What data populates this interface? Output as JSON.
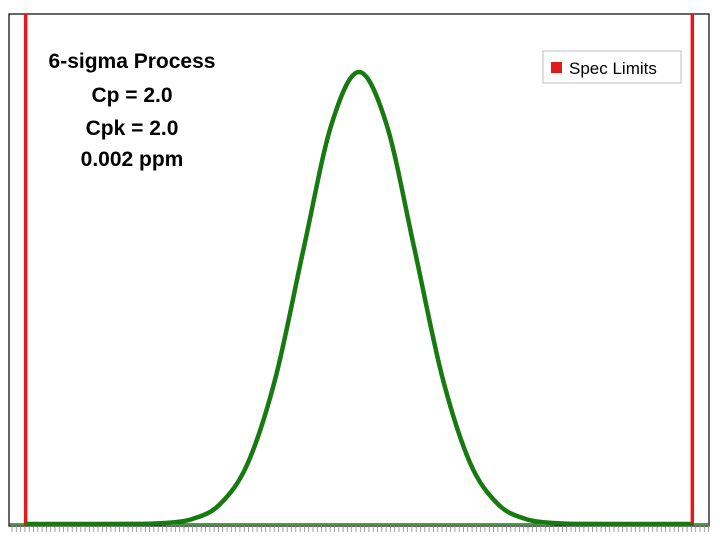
{
  "chart_data": {
    "type": "line",
    "title": "",
    "xlabel": "",
    "ylabel": "",
    "xlim": [
      -6.3,
      6.3
    ],
    "ylim": [
      0,
      1.08
    ],
    "grid": false,
    "legend": {
      "placement": "top-right",
      "entries": [
        {
          "label": "Spec Limits",
          "color": "#e31a1c"
        }
      ]
    },
    "annotations": [
      "6-sigma Process",
      "Cp = 2.0",
      "Cpk = 2.0",
      "0.002 ppm"
    ],
    "spec_limits": {
      "lsl": -6,
      "usl": 6,
      "color": "#e31a1c"
    },
    "series": [
      {
        "color": "#177a10",
        "x": [
          -6,
          -5,
          -4,
          -3.5,
          -3,
          -2.5,
          -2,
          -1.5,
          -1,
          -0.5,
          0,
          0.5,
          1,
          1.5,
          2,
          2.5,
          3,
          3.5,
          4,
          5,
          6
        ],
        "y": [
          0,
          0,
          0.0003,
          0.0022,
          0.011,
          0.044,
          0.135,
          0.325,
          0.607,
          0.882,
          1.0,
          0.882,
          0.607,
          0.325,
          0.135,
          0.044,
          0.011,
          0.0022,
          0.0003,
          0,
          0
        ]
      }
    ]
  }
}
